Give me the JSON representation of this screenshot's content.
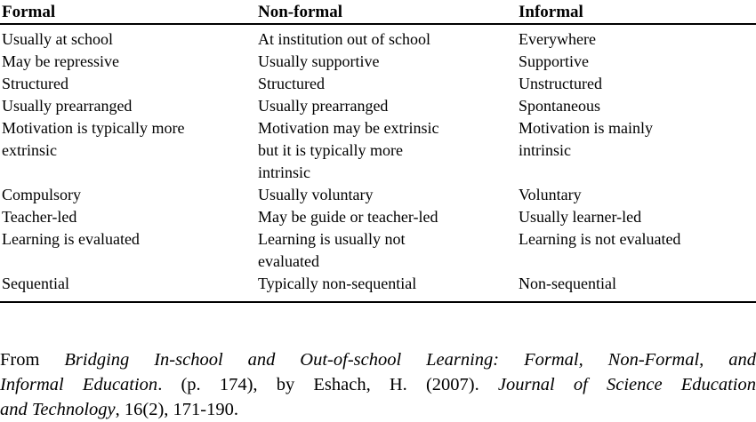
{
  "table": {
    "headers": [
      "Formal",
      "Non-formal",
      "Informal"
    ],
    "rows": [
      [
        "Usually at school",
        "At institution out of school",
        "Everywhere"
      ],
      [
        "May be repressive",
        "Usually supportive",
        "Supportive"
      ],
      [
        "Structured",
        "Structured",
        "Unstructured"
      ],
      [
        "Usually prearranged",
        "Usually prearranged",
        "Spontaneous"
      ],
      [
        "Motivation is typically more\nextrinsic",
        "Motivation may be extrinsic\nbut it is typically more\nintrinsic",
        "Motivation is mainly\nintrinsic"
      ],
      [
        "Compulsory",
        "Usually voluntary",
        "Voluntary"
      ],
      [
        "Teacher-led",
        "May be guide or teacher-led",
        "Usually learner-led"
      ],
      [
        "Learning is evaluated",
        "Learning is usually not\nevaluated",
        "Learning is not evaluated"
      ],
      [
        "Sequential",
        "Typically non-sequential",
        "Non-sequential"
      ]
    ]
  },
  "citation": {
    "from": "From ",
    "title_part1": "Bridging In-school and Out-of-school Learning: Formal, Non-Formal, and",
    "title_part2": "Informal Education",
    "middle": ". (p. 174), by Eshach, H. (2007). ",
    "journal_part1": "Journal of Science Education",
    "journal_part2": "and Technology",
    "suffix": ", 16(2), 171-190."
  },
  "colors": {
    "background": "#ffffff",
    "text": "#000000",
    "rule": "#000000"
  }
}
